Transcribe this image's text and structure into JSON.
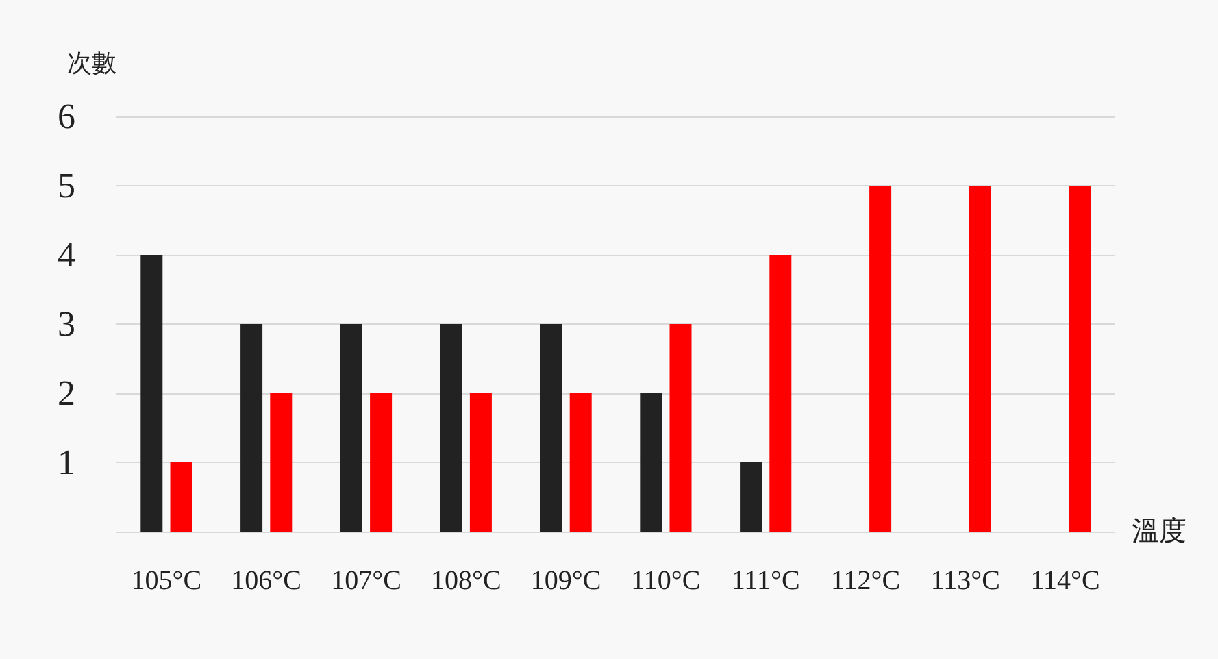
{
  "chart_data": {
    "type": "bar",
    "xlabel": "溫度",
    "ylabel": "次數",
    "categories": [
      "105°C",
      "106°C",
      "107°C",
      "108°C",
      "109°C",
      "110°C",
      "111°C",
      "112°C",
      "113°C",
      "114°C"
    ],
    "series": [
      {
        "color": "#222222",
        "values": [
          4,
          3,
          3,
          3,
          3,
          2,
          1,
          null,
          null,
          null
        ]
      },
      {
        "color": "#ff0000",
        "values": [
          1,
          2,
          2,
          2,
          2,
          3,
          4,
          5,
          5,
          5
        ]
      }
    ],
    "ylim": [
      0,
      6
    ],
    "yticks": [
      {
        "value": 0,
        "label": null
      },
      1,
      2,
      3,
      4,
      5,
      6
    ],
    "grid": "y"
  }
}
